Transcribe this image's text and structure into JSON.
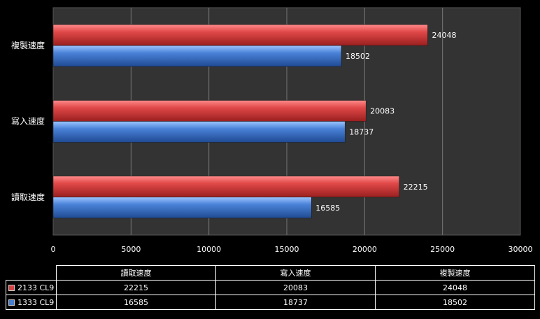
{
  "chart_data": {
    "type": "bar",
    "orientation": "horizontal",
    "categories": [
      "讀取速度",
      "寫入速度",
      "複製速度"
    ],
    "series": [
      {
        "name": "2133 CL9",
        "color": "#d64545",
        "values": [
          22215,
          20083,
          24048
        ]
      },
      {
        "name": "1333 CL9",
        "color": "#4a7fd0",
        "values": [
          16585,
          18737,
          18502
        ]
      }
    ],
    "xlim": [
      0,
      30000
    ],
    "xticks": [
      0,
      5000,
      10000,
      15000,
      20000,
      25000,
      30000
    ],
    "grid": true,
    "background": "#333333",
    "legend": "data-table-below"
  },
  "table": {
    "rows": [
      {
        "name": "2133 CL9",
        "values": [
          "22215",
          "20083",
          "24048"
        ]
      },
      {
        "name": "1333 CL9",
        "values": [
          "16585",
          "18737",
          "18502"
        ]
      }
    ]
  }
}
